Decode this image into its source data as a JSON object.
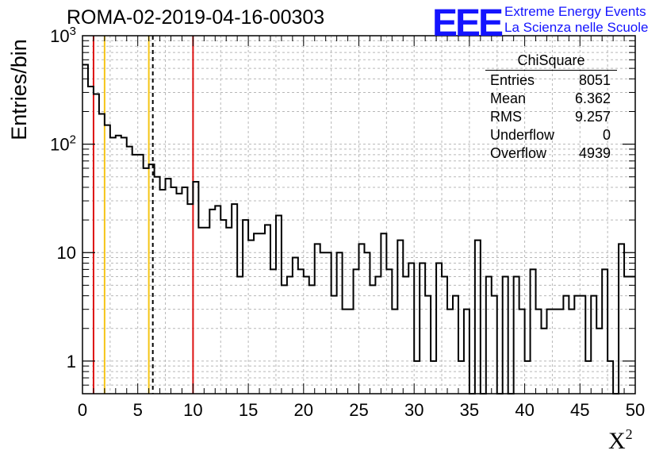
{
  "header": {
    "title": "ROMA-02-2019-04-16-00303",
    "logo_text": "EEE",
    "logo_line1": "Extreme Energy Events",
    "logo_line2": "La Scienza nelle Scuole",
    "logo_color": "#1414ff"
  },
  "stats_box": {
    "title": "ChiSquare",
    "rows": [
      {
        "label": "Entries",
        "value": "8051"
      },
      {
        "label": "Mean",
        "value": "6.362"
      },
      {
        "label": "RMS",
        "value": "9.257"
      },
      {
        "label": "Underflow",
        "value": "0"
      },
      {
        "label": "Overflow",
        "value": "4939"
      }
    ]
  },
  "chart_data": {
    "type": "histogram",
    "xlabel": "X",
    "xlabel_superscript": "2",
    "ylabel": "Entries/bin",
    "xlim": [
      0,
      50
    ],
    "ylim": [
      0.5,
      1000
    ],
    "y_scale": "log",
    "grid": true,
    "bin_width": 0.5,
    "x_ticks": [
      "0",
      "5",
      "10",
      "15",
      "20",
      "25",
      "30",
      "35",
      "40",
      "45",
      "50"
    ],
    "y_ticks": [
      {
        "value": 1,
        "label": "1"
      },
      {
        "value": 10,
        "label": "10"
      },
      {
        "value": 100,
        "label": "10",
        "sup": "2"
      },
      {
        "value": 1000,
        "label": "10",
        "sup": "3"
      }
    ],
    "values": [
      540,
      340,
      290,
      190,
      150,
      115,
      120,
      115,
      95,
      80,
      80,
      60,
      65,
      50,
      38,
      48,
      40,
      35,
      40,
      28,
      45,
      17,
      17,
      25,
      27,
      20,
      17,
      28,
      6,
      20,
      13,
      15,
      15,
      18,
      7,
      22,
      5,
      6,
      9,
      7,
      6,
      5,
      12,
      10,
      10,
      4,
      10,
      3,
      3,
      7,
      12,
      10,
      5,
      6,
      15,
      7,
      3,
      13,
      6,
      8,
      1,
      8,
      4,
      1,
      8,
      6,
      3,
      4,
      1,
      3,
      0,
      13,
      0,
      6,
      4,
      0,
      6,
      0,
      6,
      3,
      1,
      7,
      3,
      2,
      3,
      3,
      3,
      4,
      3,
      4,
      4,
      1,
      4,
      2,
      7,
      1,
      0,
      12,
      6,
      6
    ],
    "line_color": "#000000",
    "vertical_lines": [
      {
        "x": 1,
        "color": "#dd1111",
        "style": "solid"
      },
      {
        "x": 2,
        "color": "#f5c518",
        "style": "solid"
      },
      {
        "x": 6,
        "color": "#f5c518",
        "style": "solid"
      },
      {
        "x": 6.362,
        "color": "#000000",
        "style": "dashed"
      },
      {
        "x": 10,
        "color": "#dd1111",
        "style": "solid"
      }
    ]
  }
}
